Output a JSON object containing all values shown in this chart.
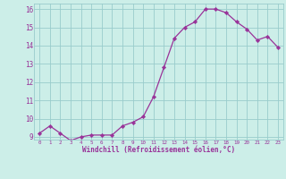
{
  "x": [
    0,
    1,
    2,
    3,
    4,
    5,
    6,
    7,
    8,
    9,
    10,
    11,
    12,
    13,
    14,
    15,
    16,
    17,
    18,
    19,
    20,
    21,
    22,
    23
  ],
  "y": [
    9.2,
    9.6,
    9.2,
    8.8,
    9.0,
    9.1,
    9.1,
    9.1,
    9.6,
    9.8,
    10.1,
    11.2,
    12.8,
    14.4,
    15.0,
    15.3,
    16.0,
    16.0,
    15.8,
    15.3,
    14.9,
    14.3,
    14.5,
    13.9
  ],
  "line_color": "#993399",
  "marker_color": "#993399",
  "bg_color": "#cceee8",
  "grid_color": "#99cccc",
  "xlabel": "Windchill (Refroidissement éolien,°C)",
  "xlabel_color": "#993399",
  "tick_color": "#993399",
  "ylim_min": 9,
  "ylim_max": 16,
  "yticks": [
    9,
    10,
    11,
    12,
    13,
    14,
    15,
    16
  ],
  "xticks": [
    0,
    1,
    2,
    3,
    4,
    5,
    6,
    7,
    8,
    9,
    10,
    11,
    12,
    13,
    14,
    15,
    16,
    17,
    18,
    19,
    20,
    21,
    22,
    23
  ]
}
